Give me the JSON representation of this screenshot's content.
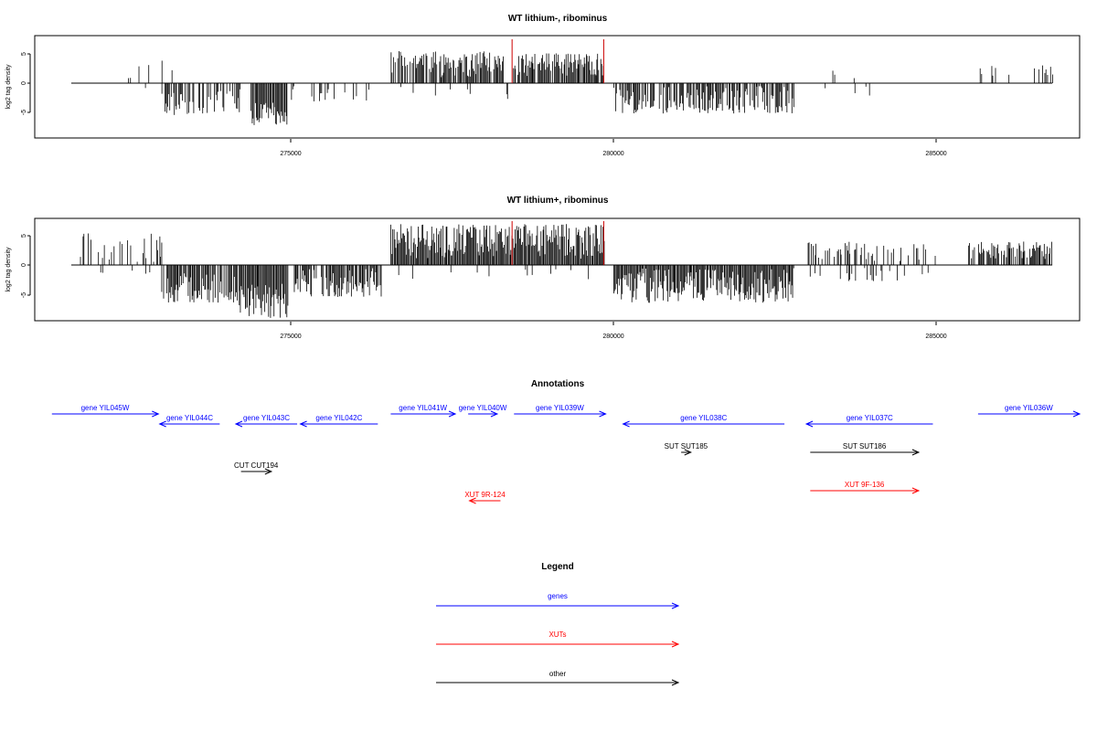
{
  "panels": [
    {
      "title": "WT lithium-, ribominus",
      "ylabel": "log2 tag density",
      "yticks": [
        "-5",
        "0",
        "5"
      ],
      "xticks": [
        "275000",
        "280000",
        "285000"
      ]
    },
    {
      "title": "WT lithium+, ribominus",
      "ylabel": "log2 tag density",
      "yticks": [
        "-5",
        "0",
        "5"
      ],
      "xticks": [
        "275000",
        "280000",
        "285000"
      ]
    }
  ],
  "annotations": {
    "title": "Annotations",
    "items": [
      {
        "label": "gene YIL045W",
        "start": 271300,
        "end": 272950,
        "strand": "+",
        "kind": "gene",
        "row": 0
      },
      {
        "label": "gene YIL044C",
        "start": 272970,
        "end": 273900,
        "strand": "-",
        "kind": "gene",
        "row": 1
      },
      {
        "label": "gene YIL043C",
        "start": 274150,
        "end": 275100,
        "strand": "-",
        "kind": "gene",
        "row": 1
      },
      {
        "label": "gene YIL042C",
        "start": 275150,
        "end": 276350,
        "strand": "-",
        "kind": "gene",
        "row": 1
      },
      {
        "label": "gene YIL041W",
        "start": 276550,
        "end": 277550,
        "strand": "+",
        "kind": "gene",
        "row": 0
      },
      {
        "label": "gene YIL040W",
        "start": 277750,
        "end": 278200,
        "strand": "+",
        "kind": "gene",
        "row": 0
      },
      {
        "label": "gene YIL039W",
        "start": 278460,
        "end": 279880,
        "strand": "+",
        "kind": "gene",
        "row": 0
      },
      {
        "label": "gene YIL038C",
        "start": 280150,
        "end": 282650,
        "strand": "-",
        "kind": "gene",
        "row": 1
      },
      {
        "label": "gene YIL037C",
        "start": 282990,
        "end": 284950,
        "strand": "-",
        "kind": "gene",
        "row": 1
      },
      {
        "label": "gene YIL036W",
        "start": 285650,
        "end": 287300,
        "strand": "+",
        "kind": "gene",
        "row": 0
      },
      {
        "label": "SUT SUT185",
        "start": 281050,
        "end": 281200,
        "strand": "+",
        "kind": "other",
        "row": 2
      },
      {
        "label": "SUT SUT186",
        "start": 283050,
        "end": 284730,
        "strand": "+",
        "kind": "other",
        "row": 2
      },
      {
        "label": "CUT CUT194",
        "start": 274230,
        "end": 274700,
        "strand": "+",
        "kind": "other",
        "row": 3
      },
      {
        "label": "XUT 9F-136",
        "start": 283050,
        "end": 284730,
        "strand": "+",
        "kind": "xut",
        "row": 4
      },
      {
        "label": "XUT 9R-124",
        "start": 277770,
        "end": 278250,
        "strand": "-",
        "kind": "xut",
        "row": 5
      }
    ]
  },
  "legend": {
    "title": "Legend",
    "items": [
      {
        "label": "genes",
        "kind": "gene"
      },
      {
        "label": "XUTs",
        "kind": "xut"
      },
      {
        "label": "other",
        "kind": "other"
      }
    ]
  },
  "colors": {
    "gene": "#0000ff",
    "xut": "#ff0000",
    "other": "#000000",
    "highlight": "#cc0000"
  },
  "chart_data": [
    {
      "type": "bar",
      "title": "WT lithium-, ribominus",
      "xlabel": "",
      "ylabel": "log2 tag density",
      "xlim": [
        271000,
        287300
      ],
      "ylim": [
        -9,
        8
      ],
      "highlight_lines_x": [
        278430,
        279850
      ],
      "regions": [
        {
          "start": 271600,
          "end": 272600,
          "density": 0.06,
          "sign": 1,
          "min": 0.5,
          "max": 1.6
        },
        {
          "start": 272600,
          "end": 273200,
          "density": 0.12,
          "sign": 1,
          "min": 1,
          "max": 4
        },
        {
          "start": 272700,
          "end": 273000,
          "density": 0.1,
          "sign": -1,
          "min": 0.5,
          "max": 1.5
        },
        {
          "start": 273000,
          "end": 274400,
          "density": 0.55,
          "sign": -1,
          "min": 1,
          "max": 5.5
        },
        {
          "start": 274400,
          "end": 274950,
          "density": 1.0,
          "sign": -1,
          "min": 3,
          "max": 7.2
        },
        {
          "start": 274950,
          "end": 276400,
          "density": 0.18,
          "sign": -1,
          "min": 0.5,
          "max": 3.2
        },
        {
          "start": 276550,
          "end": 278300,
          "density": 0.8,
          "sign": 1,
          "min": 1,
          "max": 5.5
        },
        {
          "start": 276550,
          "end": 278300,
          "density": 0.06,
          "sign": -1,
          "min": 0.5,
          "max": 2.5
        },
        {
          "start": 278450,
          "end": 279850,
          "density": 0.9,
          "sign": 1,
          "min": 1.2,
          "max": 5.2
        },
        {
          "start": 278300,
          "end": 278450,
          "density": 0.2,
          "sign": -1,
          "min": 0.5,
          "max": 3
        },
        {
          "start": 280000,
          "end": 282800,
          "density": 0.75,
          "sign": -1,
          "min": 0.5,
          "max": 5.2
        },
        {
          "start": 283050,
          "end": 283800,
          "density": 0.06,
          "sign": 1,
          "min": 0.5,
          "max": 3
        },
        {
          "start": 283050,
          "end": 284500,
          "density": 0.06,
          "sign": -1,
          "min": 0.5,
          "max": 2.6
        },
        {
          "start": 285600,
          "end": 286800,
          "density": 0.12,
          "sign": 1,
          "min": 1,
          "max": 3.2
        }
      ]
    },
    {
      "type": "bar",
      "title": "WT lithium+, ribominus",
      "xlabel": "",
      "ylabel": "log2 tag density",
      "xlim": [
        271000,
        287300
      ],
      "ylim": [
        -9,
        8
      ],
      "highlight_lines_x": [
        278430,
        279850
      ],
      "regions": [
        {
          "start": 271600,
          "end": 273000,
          "density": 0.35,
          "sign": 1,
          "min": 0.5,
          "max": 5.5
        },
        {
          "start": 271600,
          "end": 272900,
          "density": 0.05,
          "sign": -1,
          "min": 0.5,
          "max": 1.5
        },
        {
          "start": 273000,
          "end": 274200,
          "density": 0.9,
          "sign": -1,
          "min": 1,
          "max": 6.5
        },
        {
          "start": 274200,
          "end": 274950,
          "density": 1.0,
          "sign": -1,
          "min": 3,
          "max": 9.2
        },
        {
          "start": 275050,
          "end": 276400,
          "density": 0.85,
          "sign": -1,
          "min": 0.5,
          "max": 5.5
        },
        {
          "start": 276550,
          "end": 279850,
          "density": 1.0,
          "sign": 1,
          "min": 1,
          "max": 7
        },
        {
          "start": 276550,
          "end": 279850,
          "density": 0.05,
          "sign": -1,
          "min": 0.5,
          "max": 2.5
        },
        {
          "start": 280000,
          "end": 282800,
          "density": 1.0,
          "sign": -1,
          "min": 0.5,
          "max": 6.5
        },
        {
          "start": 283000,
          "end": 285000,
          "density": 0.35,
          "sign": 1,
          "min": 0.5,
          "max": 4
        },
        {
          "start": 283000,
          "end": 285000,
          "density": 0.1,
          "sign": -1,
          "min": 0.5,
          "max": 3
        },
        {
          "start": 285500,
          "end": 286800,
          "density": 0.8,
          "sign": 1,
          "min": 1,
          "max": 4
        }
      ]
    }
  ]
}
